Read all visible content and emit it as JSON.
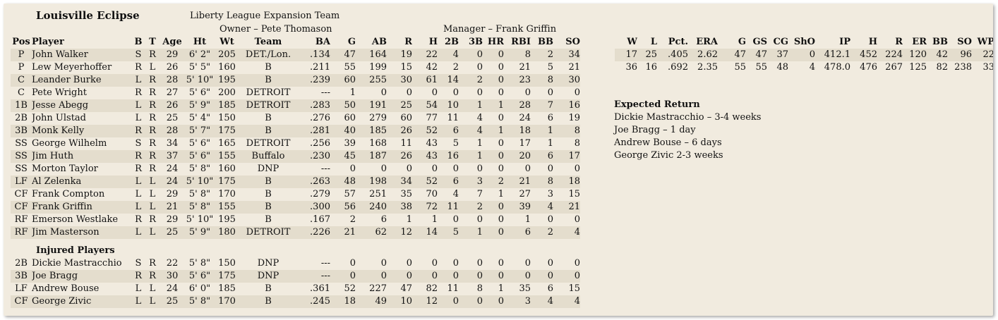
{
  "team_name": "Louisville Eclipse",
  "league_line": "Liberty League Expansion Team",
  "owner_line": "Owner – Pete Thomason",
  "manager_line": "Manager – Frank Griffin",
  "batting_headers": [
    "Pos",
    "Player",
    "B",
    "T",
    "Age",
    "Ht",
    "Wt",
    "Team",
    "BA",
    "G",
    "AB",
    "R",
    "H",
    "2B",
    "3B",
    "HR",
    "RBI",
    "BB",
    "SO"
  ],
  "pitching_headers": [
    "W",
    "L",
    "Pct.",
    "ERA",
    "G",
    "GS",
    "CG",
    "ShO",
    "IP",
    "H",
    "R",
    "ER",
    "BB",
    "SO",
    "WP"
  ],
  "roster": [
    [
      "P",
      "John Walker",
      "S",
      "R",
      "29",
      "6' 2\"",
      "205",
      "DET./Lon.",
      ".134",
      "47",
      "164",
      "19",
      "22",
      "4",
      "0",
      "0",
      "8",
      "2",
      "34"
    ],
    [
      "P",
      "Lew Meyerhoffer",
      "R",
      "L",
      "26",
      "5' 5\"",
      "160",
      "B",
      ".211",
      "55",
      "199",
      "15",
      "42",
      "2",
      "0",
      "0",
      "21",
      "5",
      "21"
    ],
    [
      "C",
      "Leander Burke",
      "L",
      "R",
      "28",
      "5' 10\"",
      "195",
      "B",
      ".239",
      "60",
      "255",
      "30",
      "61",
      "14",
      "2",
      "0",
      "23",
      "8",
      "30"
    ],
    [
      "C",
      "Pete Wright",
      "R",
      "R",
      "27",
      "5' 6\"",
      "200",
      "DETROIT",
      "---",
      "1",
      "0",
      "0",
      "0",
      "0",
      "0",
      "0",
      "0",
      "0",
      "0"
    ],
    [
      "1B",
      "Jesse Abegg",
      "L",
      "R",
      "26",
      "5' 9\"",
      "185",
      "DETROIT",
      ".283",
      "50",
      "191",
      "25",
      "54",
      "10",
      "1",
      "1",
      "28",
      "7",
      "16"
    ],
    [
      "2B",
      "John Ulstad",
      "L",
      "R",
      "25",
      "5' 4\"",
      "150",
      "B",
      ".276",
      "60",
      "279",
      "60",
      "77",
      "11",
      "4",
      "0",
      "24",
      "6",
      "19"
    ],
    [
      "3B",
      "Monk Kelly",
      "R",
      "R",
      "28",
      "5' 7\"",
      "175",
      "B",
      ".281",
      "40",
      "185",
      "26",
      "52",
      "6",
      "4",
      "1",
      "18",
      "1",
      "8"
    ],
    [
      "SS",
      "George Wilhelm",
      "S",
      "R",
      "34",
      "5' 6\"",
      "165",
      "DETROIT",
      ".256",
      "39",
      "168",
      "11",
      "43",
      "5",
      "1",
      "0",
      "17",
      "1",
      "8"
    ],
    [
      "SS",
      "Jim Huth",
      "R",
      "R",
      "37",
      "5' 6\"",
      "155",
      "Buffalo",
      ".230",
      "45",
      "187",
      "26",
      "43",
      "16",
      "1",
      "0",
      "20",
      "6",
      "17"
    ],
    [
      "SS",
      "Morton Taylor",
      "R",
      "R",
      "24",
      "5' 8\"",
      "160",
      "DNP",
      "---",
      "0",
      "0",
      "0",
      "0",
      "0",
      "0",
      "0",
      "0",
      "0",
      "0"
    ],
    [
      "LF",
      "Al Zelenka",
      "L",
      "L",
      "24",
      "5' 10\"",
      "175",
      "B",
      ".263",
      "48",
      "198",
      "34",
      "52",
      "6",
      "3",
      "2",
      "21",
      "8",
      "18"
    ],
    [
      "CF",
      "Frank Compton",
      "L",
      "L",
      "29",
      "5' 8\"",
      "170",
      "B",
      ".279",
      "57",
      "251",
      "35",
      "70",
      "4",
      "7",
      "1",
      "27",
      "3",
      "15"
    ],
    [
      "CF",
      "Frank Griffin",
      "L",
      "L",
      "21",
      "5' 8\"",
      "155",
      "B",
      ".300",
      "56",
      "240",
      "38",
      "72",
      "11",
      "2",
      "0",
      "39",
      "4",
      "21"
    ],
    [
      "RF",
      "Emerson Westlake",
      "R",
      "R",
      "29",
      "5' 10\"",
      "195",
      "B",
      ".167",
      "2",
      "6",
      "1",
      "1",
      "0",
      "0",
      "0",
      "1",
      "0",
      "0"
    ],
    [
      "RF",
      "Jim Masterson",
      "L",
      "L",
      "25",
      "5' 9\"",
      "180",
      "DETROIT",
      ".226",
      "21",
      "62",
      "12",
      "14",
      "5",
      "1",
      "0",
      "6",
      "2",
      "4"
    ]
  ],
  "injured_title": "Injured Players",
  "injured": [
    [
      "2B",
      "Dickie Mastracchio",
      "S",
      "R",
      "22",
      "5' 8\"",
      "150",
      "DNP",
      "---",
      "0",
      "0",
      "0",
      "0",
      "0",
      "0",
      "0",
      "0",
      "0",
      "0"
    ],
    [
      "3B",
      "Joe Bragg",
      "R",
      "R",
      "30",
      "5' 6\"",
      "175",
      "DNP",
      "---",
      "0",
      "0",
      "0",
      "0",
      "0",
      "0",
      "0",
      "0",
      "0",
      "0"
    ],
    [
      "LF",
      "Andrew Bouse",
      "L",
      "L",
      "24",
      "6' 0\"",
      "185",
      "B",
      ".361",
      "52",
      "227",
      "47",
      "82",
      "11",
      "8",
      "1",
      "35",
      "6",
      "15"
    ],
    [
      "CF",
      "George Zivic",
      "L",
      "L",
      "25",
      "5' 8\"",
      "170",
      "B",
      ".245",
      "18",
      "49",
      "10",
      "12",
      "0",
      "0",
      "0",
      "3",
      "4",
      "4"
    ]
  ],
  "pitching": [
    [
      "17",
      "25",
      ".405",
      "2.62",
      "47",
      "47",
      "37",
      "0",
      "412.1",
      "452",
      "224",
      "120",
      "42",
      "96",
      "22"
    ],
    [
      "36",
      "16",
      ".692",
      "2.35",
      "55",
      "55",
      "48",
      "4",
      "478.0",
      "476",
      "267",
      "125",
      "82",
      "238",
      "33"
    ]
  ],
  "expected_return_title": "Expected Return",
  "expected_return": [
    "Dickie Mastracchio – 3-4 weeks",
    "Joe Bragg – 1 day",
    "Andrew Bouse – 6 days",
    "George Zivic 2-3 weeks"
  ]
}
